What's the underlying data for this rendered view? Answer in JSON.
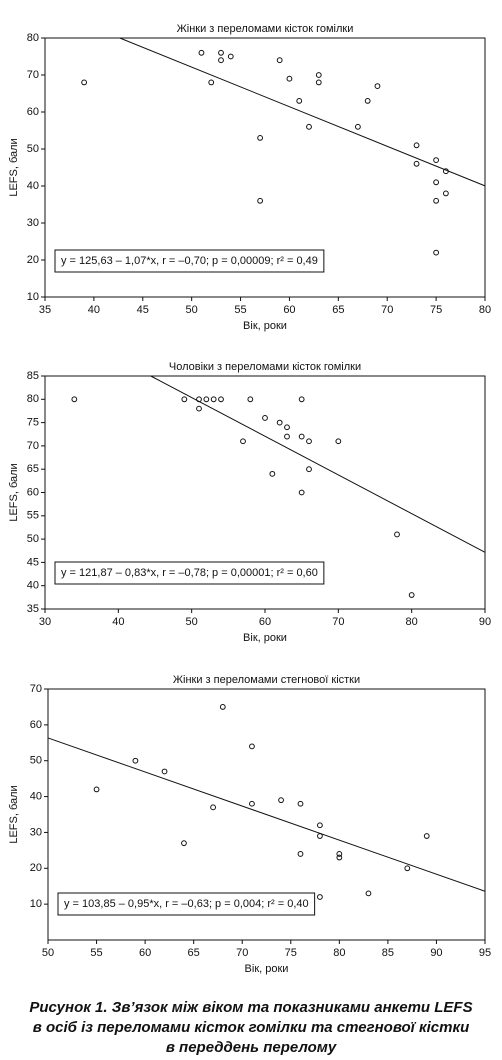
{
  "chart_data": [
    {
      "type": "scatter",
      "title": "Жінки з переломами кісток гомілки",
      "x_label": "Вік, роки",
      "y_label": "LEFS, бали",
      "xlim": [
        35,
        80
      ],
      "xticks": [
        35,
        40,
        45,
        50,
        55,
        60,
        65,
        70,
        75,
        80
      ],
      "ylim": [
        10,
        80
      ],
      "yticks": [
        10,
        20,
        30,
        40,
        50,
        60,
        70,
        80
      ],
      "x": [
        39,
        51,
        52,
        53,
        53,
        54,
        57,
        57,
        59,
        60,
        61,
        62,
        63,
        63,
        67,
        68,
        69,
        73,
        73,
        75,
        75,
        75,
        75,
        76,
        76
      ],
      "values": [
        68,
        76,
        68,
        76,
        74,
        75,
        53,
        36,
        74,
        69,
        63,
        56,
        70,
        68,
        56,
        63,
        67,
        51,
        46,
        47,
        41,
        36,
        22,
        44,
        38
      ],
      "trendline": {
        "intercept": 125.63,
        "slope": -1.07
      },
      "annotation": "y = 125,63 – 1,07*x, r = –0,70; p = 0,00009; r² = 0,49"
    },
    {
      "type": "scatter",
      "title": "Чоловіки з переломами кісток гомілки",
      "x_label": "Вік, роки",
      "y_label": "LEFS, бали",
      "xlim": [
        30,
        90
      ],
      "xticks": [
        30,
        40,
        50,
        60,
        70,
        80,
        90
      ],
      "ylim": [
        35,
        85
      ],
      "yticks": [
        35,
        40,
        45,
        50,
        55,
        60,
        65,
        70,
        75,
        80,
        85
      ],
      "x": [
        34,
        49,
        51,
        51,
        52,
        53,
        54,
        57,
        58,
        60,
        61,
        62,
        63,
        63,
        65,
        65,
        65,
        66,
        66,
        70,
        78,
        80
      ],
      "values": [
        80,
        80,
        80,
        78,
        80,
        80,
        80,
        71,
        80,
        76,
        64,
        75,
        74,
        72,
        80,
        72,
        60,
        71,
        65,
        71,
        51,
        38
      ],
      "trendline": {
        "intercept": 121.87,
        "slope": -0.83
      },
      "annotation": "y = 121,87 – 0,83*x, r = –0,78; p = 0,00001; r² = 0,60"
    },
    {
      "type": "scatter",
      "title": "Жінки з переломами стегнової кістки",
      "x_label": "Вік, роки",
      "y_label": "LEFS, бали",
      "xlim": [
        50,
        95
      ],
      "xticks": [
        50,
        55,
        60,
        65,
        70,
        75,
        80,
        85,
        90,
        95
      ],
      "ylim": [
        0,
        70
      ],
      "yticks": [
        10,
        20,
        30,
        40,
        50,
        60,
        70
      ],
      "x": [
        55,
        59,
        62,
        64,
        67,
        68,
        71,
        71,
        74,
        76,
        76,
        78,
        78,
        78,
        80,
        80,
        83,
        87,
        89
      ],
      "values": [
        42,
        50,
        47,
        27,
        37,
        65,
        54,
        38,
        39,
        38,
        24,
        32,
        29,
        12,
        24,
        23,
        13,
        20,
        29
      ],
      "trendline": {
        "intercept": 103.85,
        "slope": -0.95
      },
      "annotation": "y = 103,85 – 0,95*x, r = –0,63; p = 0,004; r² = 0,40"
    }
  ],
  "caption": [
    "Рисунок 1. Зв’язок між віком та показниками анкети LEFS",
    "в осіб із переломами кісток гомілки та стегнової кістки",
    "в переддень перелому"
  ]
}
